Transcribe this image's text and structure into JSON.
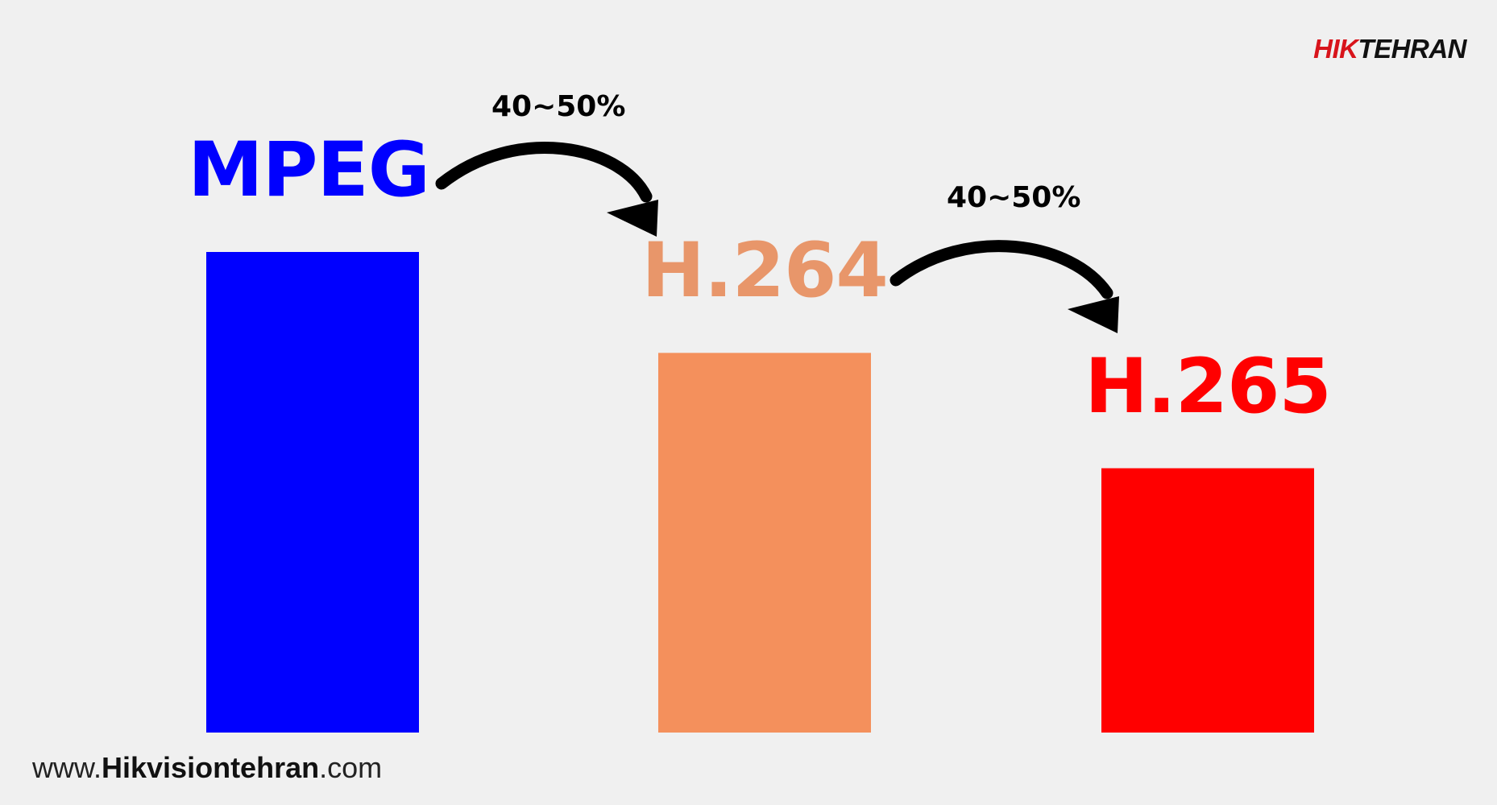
{
  "chart_data": {
    "type": "bar",
    "categories": [
      "MPEG",
      "H.264",
      "H.265"
    ],
    "values": [
      100,
      79,
      55
    ],
    "ylim": [
      0,
      100
    ],
    "colors": [
      "#0000ff",
      "#f4905c",
      "#ff0000"
    ],
    "label_colors": [
      "#0000ff",
      "#e8966a",
      "#ff0000"
    ],
    "annotations": [
      {
        "text": "40~50%",
        "from": "MPEG",
        "to": "H.264"
      },
      {
        "text": "40~50%",
        "from": "H.264",
        "to": "H.265"
      }
    ],
    "grid": false,
    "legend": "none"
  },
  "branding": {
    "logo_hik": "HIK",
    "logo_rest": "TEHRAN",
    "footer_prefix": "www.",
    "footer_bold": "Hikvisiontehran",
    "footer_suffix": ".com"
  }
}
